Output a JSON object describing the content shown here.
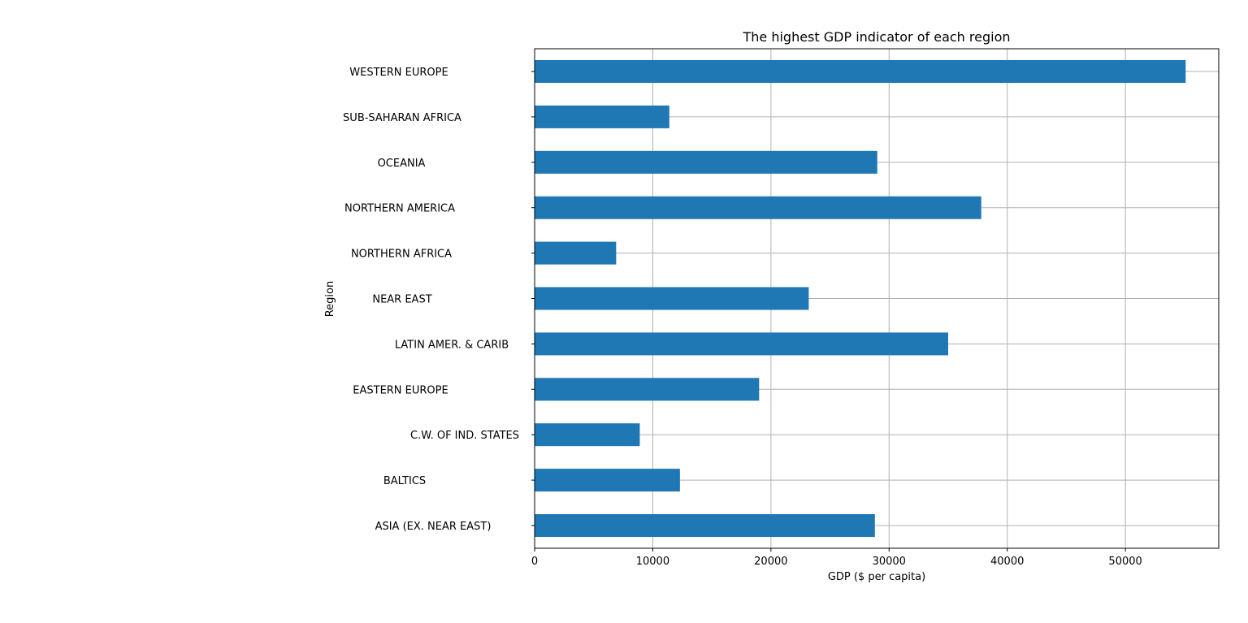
{
  "chart_data": {
    "type": "bar",
    "orientation": "horizontal",
    "title": "The highest GDP indicator of each region",
    "xlabel": "GDP ($ per capita)",
    "ylabel": "Region",
    "categories": [
      "ASIA (EX. NEAR EAST)",
      "BALTICS",
      "C.W. OF IND. STATES",
      "EASTERN EUROPE",
      "LATIN AMER. & CARIB",
      "NEAR EAST",
      "NORTHERN AFRICA",
      "NORTHERN AMERICA",
      "OCEANIA",
      "SUB-SAHARAN AFRICA",
      "WESTERN EUROPE"
    ],
    "values": [
      28800,
      12300,
      8900,
      19000,
      35000,
      23200,
      6900,
      37800,
      29000,
      11400,
      55100
    ],
    "xlim": [
      0,
      57900
    ],
    "xticks": [
      0,
      10000,
      20000,
      30000,
      40000,
      50000
    ],
    "xtick_labels": [
      "0",
      "10000",
      "20000",
      "30000",
      "40000",
      "50000"
    ],
    "grid": true,
    "bar_color": "#1f77b4",
    "grid_color": "#b0b0b0"
  }
}
